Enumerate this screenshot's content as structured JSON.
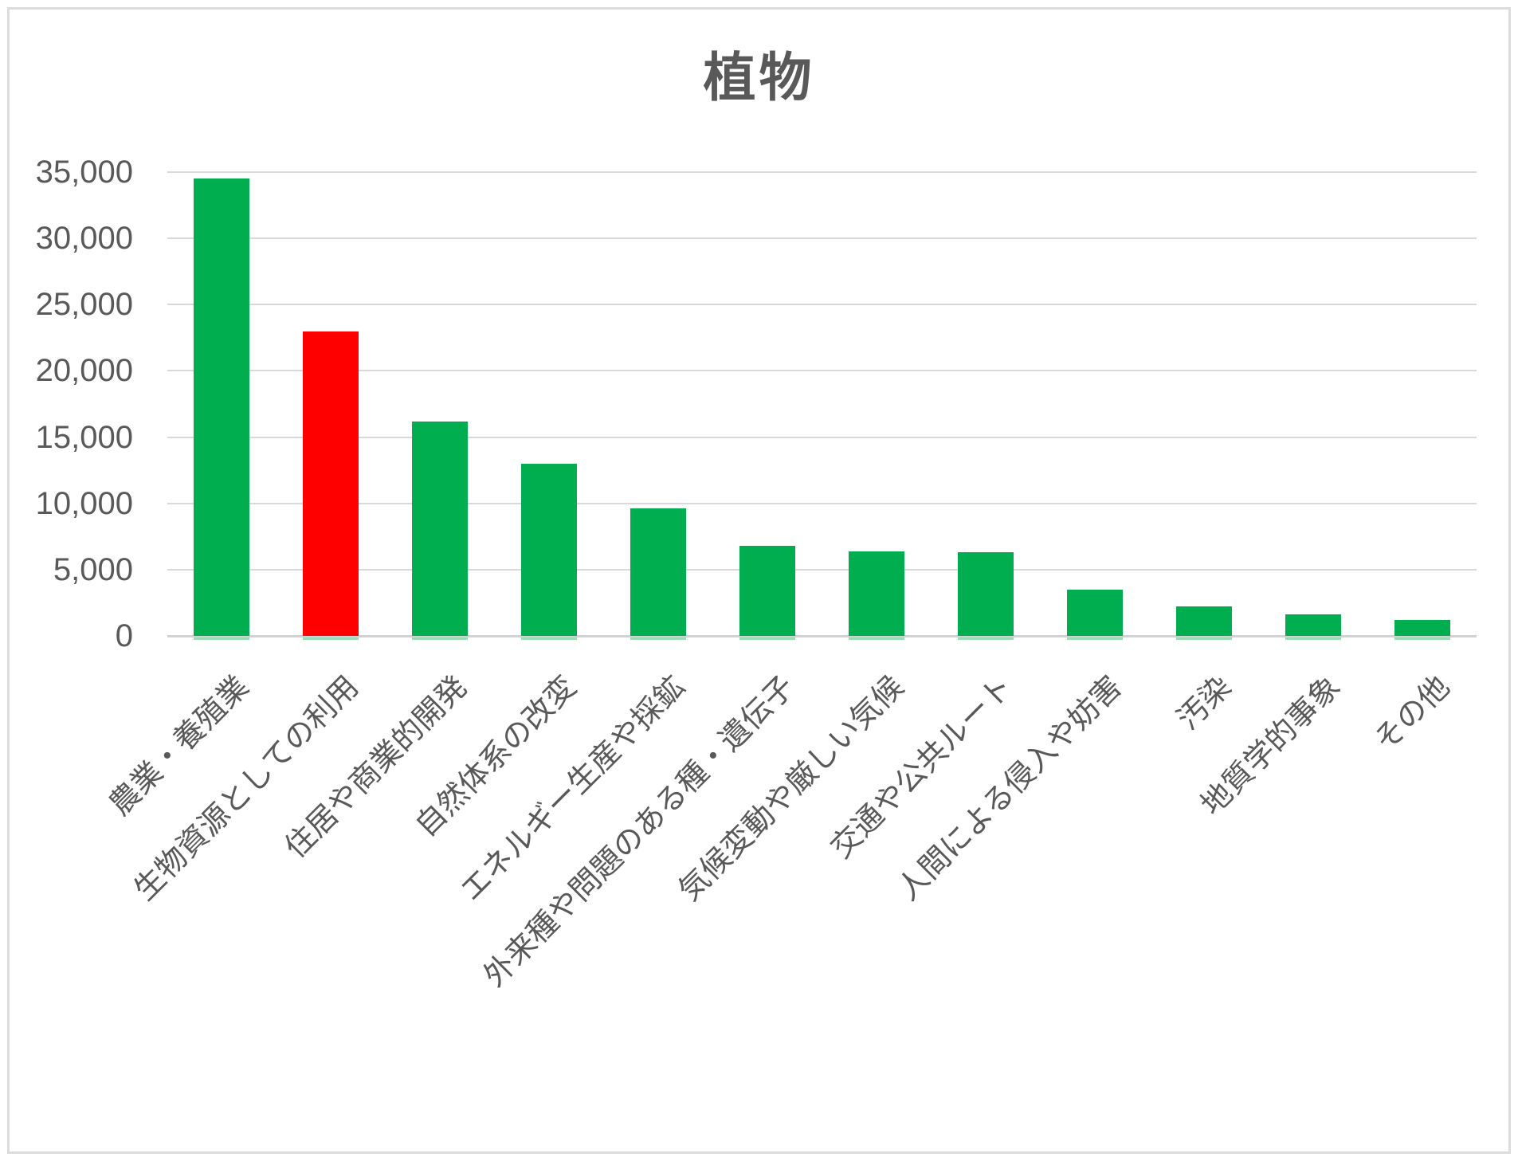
{
  "chart_data": {
    "type": "bar",
    "title": "植物",
    "categories": [
      "農業・養殖業",
      "生物資源としての利用",
      "住居や商業的開発",
      "自然体系の改変",
      "エネルギー生産や採鉱",
      "外来種や問題のある種・遺伝子",
      "気候変動や厳しい気候",
      "交通や公共ルート",
      "人間による侵入や妨害",
      "汚染",
      "地質学的事象",
      "その他"
    ],
    "values": [
      34500,
      23000,
      16200,
      13000,
      9600,
      6800,
      6400,
      6300,
      3500,
      2250,
      1600,
      1200
    ],
    "bar_colors": [
      "#00AE50",
      "#FF0000",
      "#00AE50",
      "#00AE50",
      "#00AE50",
      "#00AE50",
      "#00AE50",
      "#00AE50",
      "#00AE50",
      "#00AE50",
      "#00AE50",
      "#00AE50"
    ],
    "highlight_index": 1,
    "xlabel": "",
    "ylabel": "",
    "ylim": [
      0,
      35000
    ],
    "ytick_step": 5000,
    "ytick_labels": [
      "0",
      "5,000",
      "10,000",
      "15,000",
      "20,000",
      "25,000",
      "30,000",
      "35,000"
    ],
    "grid": true,
    "legend": "none",
    "colors": {
      "bar_default": "#00AE50",
      "bar_highlight": "#FF0000",
      "bar_base_strip": "#9BDDB6",
      "gridline": "#D9D9D9",
      "axis_line": "#D2D2D2",
      "text": "#595959",
      "background": "#FFFFFF",
      "frame_border": "#DCDCDC"
    }
  }
}
